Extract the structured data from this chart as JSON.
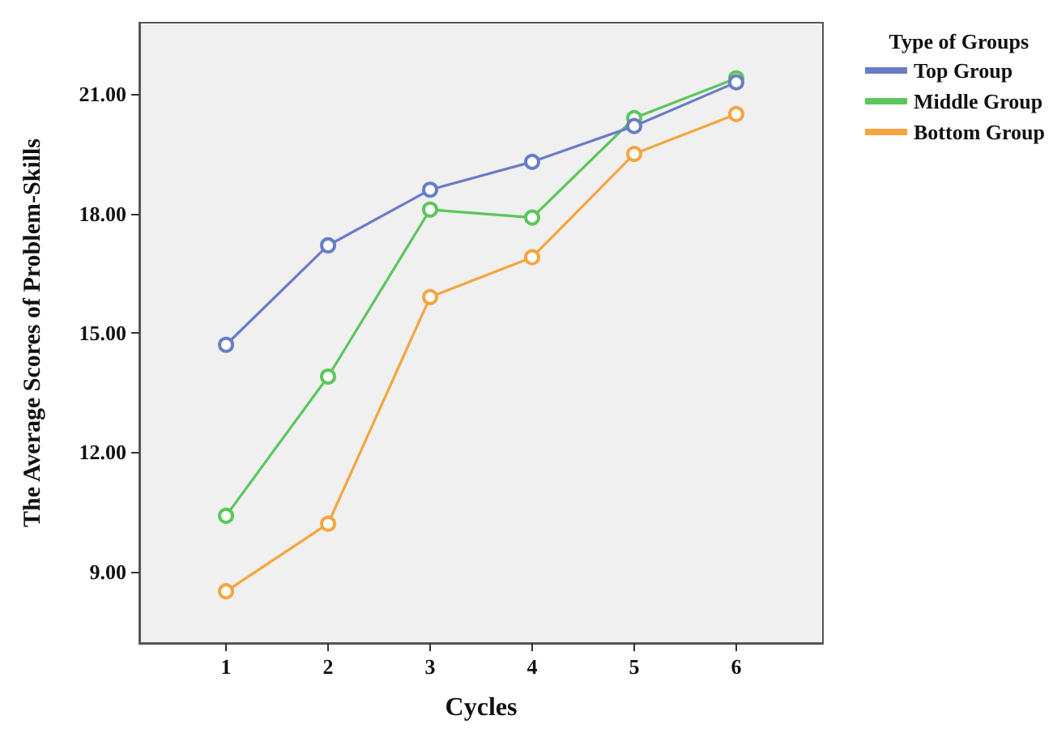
{
  "chart_data": {
    "type": "line",
    "xlabel": "Cycles",
    "ylabel": "The Average Scores of Problem-Skills",
    "legend_title": "Type of Groups",
    "x": [
      1,
      2,
      3,
      4,
      5,
      6
    ],
    "xlim": [
      0.15,
      6.85
    ],
    "xticks": [
      1,
      2,
      3,
      4,
      5,
      6
    ],
    "ylim": [
      7.2,
      22.8
    ],
    "yticks": [
      {
        "value": 9,
        "label": "9.00"
      },
      {
        "value": 12,
        "label": "12.00"
      },
      {
        "value": 15,
        "label": "15.00"
      },
      {
        "value": 18,
        "label": "18.00"
      },
      {
        "value": 21,
        "label": "21.00"
      }
    ],
    "series": [
      {
        "name": "Top Group",
        "color": "#6a7cc8",
        "values": [
          14.7,
          17.2,
          18.6,
          19.3,
          20.2,
          21.3
        ]
      },
      {
        "name": "Middle Group",
        "color": "#5cc65c",
        "values": [
          10.4,
          13.9,
          18.1,
          17.9,
          20.4,
          21.4
        ]
      },
      {
        "name": "Bottom Group",
        "color": "#f6a53f",
        "values": [
          8.5,
          10.2,
          15.9,
          16.9,
          19.5,
          20.5
        ]
      }
    ],
    "marker": "circle",
    "line_style": "solid",
    "grid": false,
    "legend": "top right"
  }
}
